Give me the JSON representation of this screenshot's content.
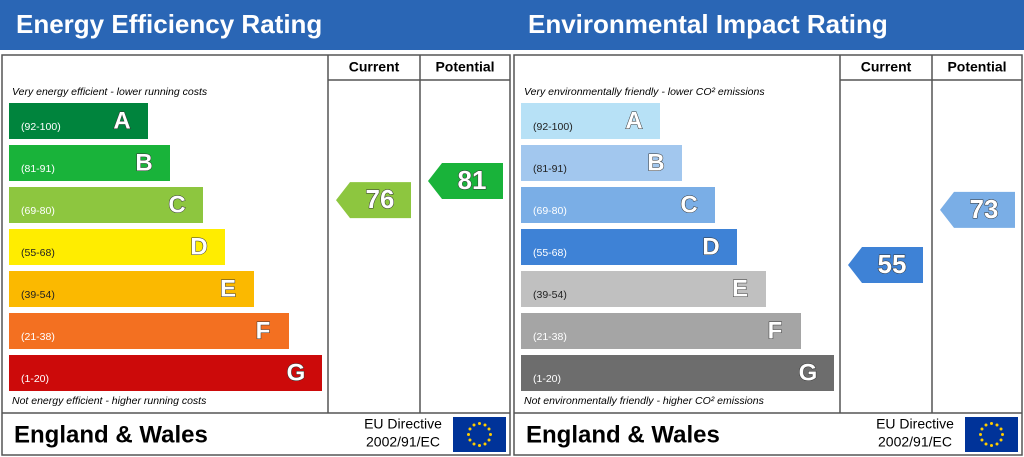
{
  "panels": [
    {
      "title": "Energy Efficiency Rating",
      "header_current": "Current",
      "header_potential": "Potential",
      "top_note": "Very energy efficient - lower running costs",
      "bottom_note": "Not energy efficient - higher running costs",
      "bands": [
        {
          "range": "(92-100)",
          "letter": "A",
          "color": "#00843d"
        },
        {
          "range": "(81-91)",
          "letter": "B",
          "color": "#19b33a"
        },
        {
          "range": "(69-80)",
          "letter": "C",
          "color": "#8dc63f"
        },
        {
          "range": "(55-68)",
          "letter": "D",
          "color": "#ffed00"
        },
        {
          "range": "(39-54)",
          "letter": "E",
          "color": "#fbb900"
        },
        {
          "range": "(21-38)",
          "letter": "F",
          "color": "#f37021"
        },
        {
          "range": "(1-20)",
          "letter": "G",
          "color": "#cc0a0a"
        }
      ],
      "current": 76,
      "potential": 81,
      "footer_region": "England & Wales",
      "directive_line1": "EU Directive",
      "directive_line2": "2002/91/EC"
    },
    {
      "title": "Environmental Impact Rating",
      "header_current": "Current",
      "header_potential": "Potential",
      "top_note": "Very environmentally friendly - lower CO² emissions",
      "bottom_note": "Not environmentally friendly - higher CO² emissions",
      "bands": [
        {
          "range": "(92-100)",
          "letter": "A",
          "color": "#b7e1f6"
        },
        {
          "range": "(81-91)",
          "letter": "B",
          "color": "#a2c7ee"
        },
        {
          "range": "(69-80)",
          "letter": "C",
          "color": "#7aaee6"
        },
        {
          "range": "(55-68)",
          "letter": "D",
          "color": "#3e82d6"
        },
        {
          "range": "(39-54)",
          "letter": "E",
          "color": "#c0c0c0"
        },
        {
          "range": "(21-38)",
          "letter": "F",
          "color": "#a5a5a5"
        },
        {
          "range": "(1-20)",
          "letter": "G",
          "color": "#6d6d6d"
        }
      ],
      "current": 55,
      "potential": 73,
      "footer_region": "England & Wales",
      "directive_line1": "EU Directive",
      "directive_line2": "2002/91/EC"
    }
  ]
}
